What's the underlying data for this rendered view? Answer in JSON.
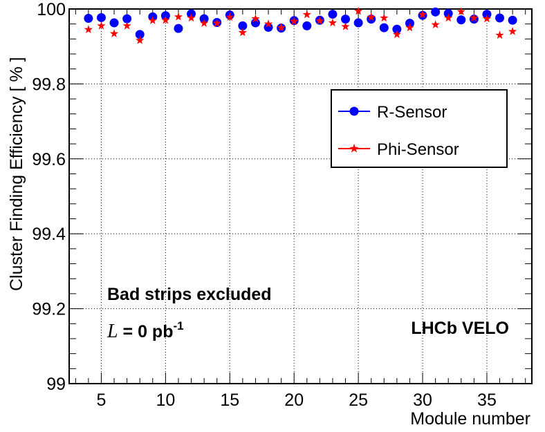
{
  "chart_data": {
    "type": "scatter",
    "title": "",
    "xlabel": "Module number",
    "ylabel": "Cluster Finding Efficiency  [ % ]",
    "xlim": [
      2.5,
      38.5
    ],
    "ylim": [
      99,
      100
    ],
    "x_ticks": [
      5,
      10,
      15,
      20,
      25,
      30,
      35
    ],
    "y_ticks": [
      99,
      99.2,
      99.4,
      99.6,
      99.8,
      100
    ],
    "y_tick_labels": [
      "99",
      "99.2",
      "99.4",
      "99.6",
      "99.8",
      "100"
    ],
    "grid": true,
    "legend_position": "top-right",
    "series": [
      {
        "name": "R-Sensor",
        "marker": "circle",
        "color": "#0000ff",
        "x": [
          4,
          5,
          6,
          7,
          8,
          9,
          10,
          11,
          12,
          13,
          14,
          15,
          16,
          17,
          18,
          19,
          20,
          21,
          22,
          23,
          24,
          25,
          26,
          27,
          28,
          29,
          30,
          31,
          32,
          33,
          34,
          35,
          36,
          37
        ],
        "y": [
          99.975,
          99.977,
          99.963,
          99.974,
          99.932,
          99.979,
          99.982,
          99.948,
          99.987,
          99.974,
          99.964,
          99.984,
          99.955,
          99.963,
          99.951,
          99.949,
          99.969,
          99.955,
          99.97,
          99.986,
          99.973,
          99.963,
          99.973,
          99.95,
          99.946,
          99.962,
          99.983,
          99.992,
          99.988,
          99.971,
          99.973,
          99.986,
          99.976,
          99.97
        ]
      },
      {
        "name": "Phi-Sensor",
        "marker": "star",
        "color": "#ff0000",
        "x": [
          4,
          5,
          6,
          7,
          8,
          9,
          10,
          11,
          12,
          13,
          14,
          15,
          16,
          17,
          18,
          19,
          20,
          21,
          22,
          23,
          24,
          25,
          26,
          27,
          28,
          29,
          30,
          31,
          32,
          33,
          34,
          35,
          36,
          37
        ],
        "y": [
          99.945,
          99.955,
          99.934,
          99.955,
          99.916,
          99.969,
          99.97,
          99.979,
          99.976,
          99.962,
          99.962,
          99.978,
          99.937,
          99.974,
          99.96,
          99.95,
          99.967,
          99.985,
          99.968,
          99.963,
          99.953,
          99.994,
          99.978,
          99.976,
          99.932,
          99.95,
          99.985,
          99.958,
          99.976,
          99.993,
          99.976,
          99.974,
          99.93,
          99.94
        ]
      }
    ],
    "annotations": {
      "bad_strips": "Bad strips excluded",
      "lumi_symbol": "L",
      "lumi_value": " = 0 pb",
      "lumi_exponent": "-1",
      "experiment": "LHCb VELO"
    }
  }
}
